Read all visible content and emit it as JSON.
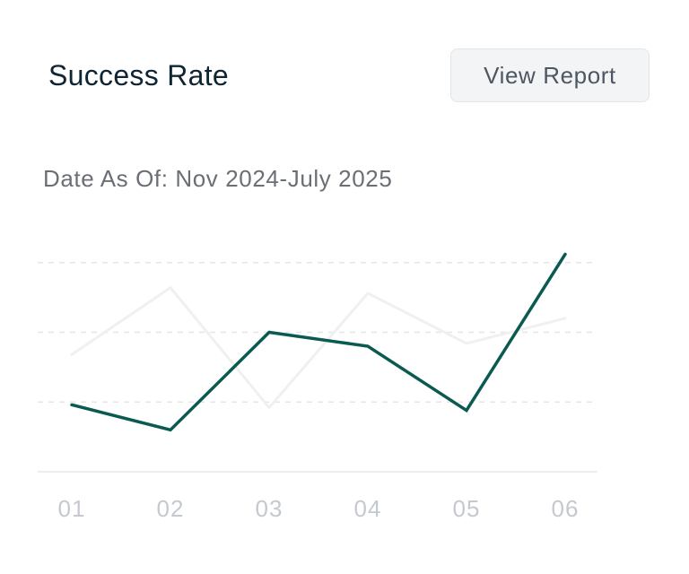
{
  "header": {
    "title": "Success Rate",
    "view_report_label": "View Report"
  },
  "subtitle": "Date As Of: Nov 2024-July 2025",
  "chart_data": {
    "type": "line",
    "categories": [
      "01",
      "02",
      "03",
      "04",
      "05",
      "06"
    ],
    "ylim": [
      0,
      100
    ],
    "grid": true,
    "legend": "none",
    "series": [
      {
        "color": "#f0f0f0",
        "values": [
          42,
          66,
          23,
          64,
          46,
          55
        ]
      },
      {
        "color": "#0b5a52",
        "values": [
          24,
          15,
          50,
          45,
          22,
          78
        ]
      }
    ]
  }
}
